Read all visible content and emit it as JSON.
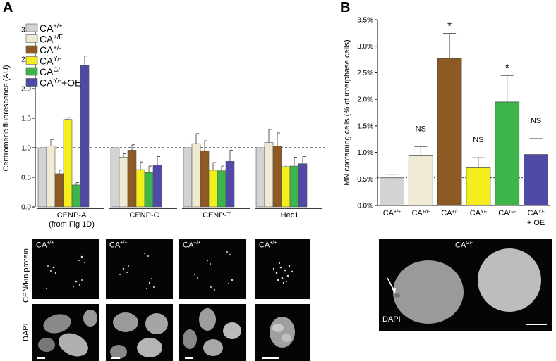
{
  "panels": {
    "a_letter": "A",
    "b_letter": "B"
  },
  "chart_data": [
    {
      "type": "bar",
      "panel": "A",
      "ylabel": "Centromeric fluorescence (AU)",
      "ylim": [
        0,
        3.0
      ],
      "yticks": [
        "0.0",
        "0.5",
        "1.0",
        "1.5",
        "2.0",
        "2.5",
        "3.0"
      ],
      "reference_line": 1.0,
      "groups": [
        {
          "label": "CENP-A",
          "sublabel": "(from Fig 1D)"
        },
        {
          "label": "CENP-C",
          "sublabel": ""
        },
        {
          "label": "CENP-T",
          "sublabel": ""
        },
        {
          "label": "Hec1",
          "sublabel": ""
        }
      ],
      "legend_position": "top-left",
      "series": [
        {
          "name": "CA",
          "sup": "+/+",
          "color": "#d3d3d3",
          "values": [
            1.0,
            1.0,
            1.0,
            1.0
          ],
          "errors": [
            0,
            0,
            0,
            0
          ]
        },
        {
          "name": "CA",
          "sup": "+/F",
          "color": "#f1ead2",
          "values": [
            1.03,
            0.84,
            1.07,
            1.09
          ],
          "errors": [
            0.11,
            0.06,
            0.17,
            0.22
          ]
        },
        {
          "name": "CA",
          "sup": "+/-",
          "color": "#8c5a22",
          "values": [
            0.56,
            0.96,
            0.95,
            1.03
          ],
          "errors": [
            0.06,
            0.09,
            0.17,
            0.22
          ]
        },
        {
          "name": "CA",
          "sup": "Y/-",
          "color": "#f4ee1c",
          "values": [
            1.48,
            0.63,
            0.62,
            0.68
          ],
          "errors": [
            0.03,
            0.13,
            0.13,
            0.03
          ]
        },
        {
          "name": "CA",
          "sup": "G/-",
          "color": "#3db54a",
          "values": [
            0.37,
            0.58,
            0.61,
            0.69
          ],
          "errors": [
            0.04,
            0.11,
            0.08,
            0.15
          ]
        },
        {
          "name": "CA",
          "sup": "Y/-",
          "suffix": "+OE",
          "color": "#4f4aa6",
          "values": [
            2.39,
            0.71,
            0.77,
            0.73
          ],
          "errors": [
            0.16,
            0.14,
            0.19,
            0.12
          ]
        }
      ]
    },
    {
      "type": "bar",
      "panel": "B",
      "ylabel": "MN containing cells (% of interphase cells)",
      "ylim": [
        0,
        3.5
      ],
      "yticks": [
        "0.0%",
        "0.5%",
        "1.0%",
        "1.5%",
        "2.0%",
        "2.5%",
        "3.0%",
        "3.5%"
      ],
      "reference_line": 0.52,
      "categories": [
        {
          "name": "CA",
          "sup": "+/+",
          "suffix": "",
          "second_line": "",
          "color": "#d3d3d3",
          "value": 0.52,
          "error": 0.06,
          "annotation": ""
        },
        {
          "name": "CA",
          "sup": "+/F",
          "suffix": "",
          "second_line": "",
          "color": "#f1ead2",
          "value": 0.95,
          "error": 0.16,
          "annotation": "NS"
        },
        {
          "name": "CA",
          "sup": "+/-",
          "suffix": "",
          "second_line": "",
          "color": "#8c5a22",
          "value": 2.77,
          "error": 0.47,
          "annotation": "*"
        },
        {
          "name": "CA",
          "sup": "Y/-",
          "suffix": "",
          "second_line": "",
          "color": "#f4ee1c",
          "value": 0.71,
          "error": 0.19,
          "annotation": "NS"
        },
        {
          "name": "CA",
          "sup": "G/-",
          "suffix": "",
          "second_line": "",
          "color": "#3db54a",
          "value": 1.95,
          "error": 0.5,
          "annotation": "*"
        },
        {
          "name": "CA",
          "sup": "Y/-",
          "suffix": "",
          "second_line": "+ OE",
          "color": "#4f4aa6",
          "value": 0.96,
          "error": 0.3,
          "annotation": "NS"
        }
      ]
    }
  ],
  "micrographs": {
    "row_labels": {
      "top": "CEN/kin protein",
      "bottom": "DAPI"
    },
    "tiles": [
      {
        "name": "CA",
        "sup": "+/+"
      },
      {
        "name": "CA",
        "sup": "+/+"
      },
      {
        "name": "CA",
        "sup": "+/+"
      },
      {
        "name": "CA",
        "sup": "+/+"
      }
    ],
    "panel_b": {
      "name": "CA",
      "sup": "G/-",
      "stain": "DAPI"
    }
  }
}
